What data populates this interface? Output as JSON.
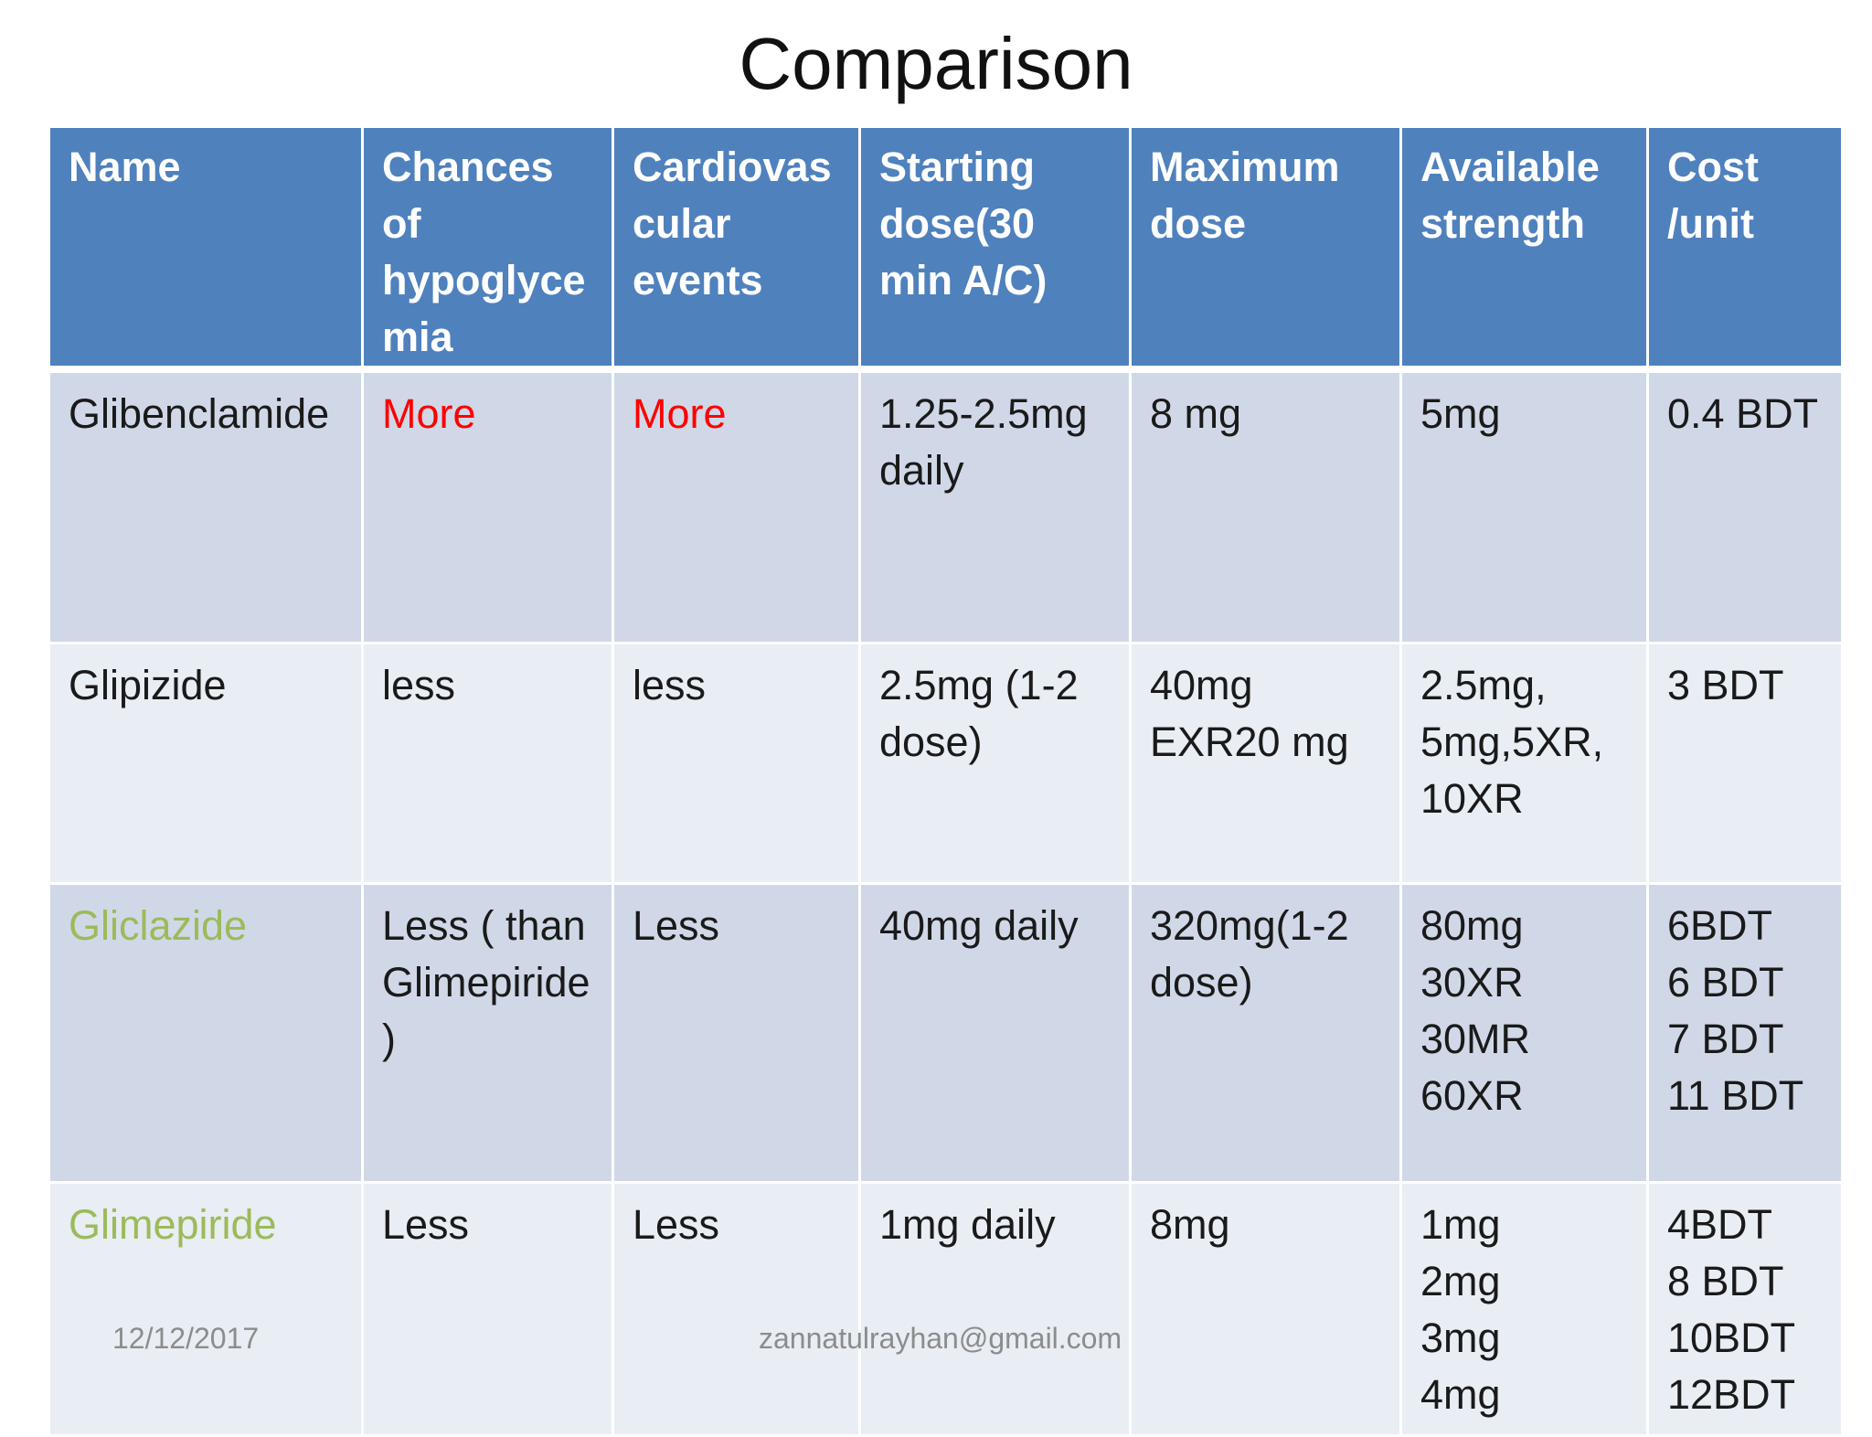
{
  "slide": {
    "title": "Comparison",
    "footer_date": "12/12/2017",
    "footer_email": "zannatulrayhan@gmail.com",
    "accent_colors": {
      "header_bg": "#4f81bd",
      "row_dark": "#d0d8e8",
      "row_light": "#e9edf4",
      "highlight_red": "#ff0000",
      "highlight_green": "#9bbb59"
    }
  },
  "table": {
    "headers": [
      "Name",
      "Chances of hypoglycemia",
      "Cardiovascular events",
      "Starting dose(30 min A/C)",
      "Maximum dose",
      "Available strength",
      "Cost /unit"
    ],
    "rows": [
      {
        "name": "Glibenclamide",
        "hypoglycemia": "More",
        "cardiovascular": "More",
        "starting_dose": "1.25-2.5mg daily",
        "maximum_dose": "8 mg",
        "available_strength": "5mg",
        "cost": "0.4 BDT"
      },
      {
        "name": "Glipizide",
        "hypoglycemia": "less",
        "cardiovascular": "less",
        "starting_dose": "2.5mg (1-2 dose)",
        "maximum_dose": "40mg\nEXR20 mg",
        "available_strength": "2.5mg,\n5mg,5XR,\n10XR",
        "cost": "3 BDT"
      },
      {
        "name": "Gliclazide",
        "hypoglycemia": "Less ( than Glimepiride)",
        "cardiovascular": "Less",
        "starting_dose": "40mg daily",
        "maximum_dose": "320mg(1-2 dose)",
        "available_strength": "80mg\n30XR\n30MR\n60XR",
        "cost": "6BDT\n6 BDT\n7 BDT\n11 BDT"
      },
      {
        "name": "Glimepiride",
        "hypoglycemia": "Less",
        "cardiovascular": "Less",
        "starting_dose": "1mg daily",
        "maximum_dose": "8mg",
        "available_strength": "1mg\n2mg\n3mg\n4mg",
        "cost": "4BDT\n8 BDT\n10BDT\n12BDT"
      }
    ]
  }
}
